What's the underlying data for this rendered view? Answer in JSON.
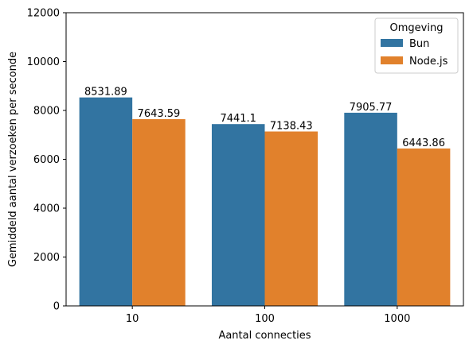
{
  "chart_data": {
    "type": "bar",
    "categories": [
      "10",
      "100",
      "1000"
    ],
    "series": [
      {
        "name": "Bun",
        "color": "#3274a1",
        "values": [
          8531.89,
          7441.1,
          7905.77
        ],
        "labels": [
          "8531.89",
          "7441.1",
          "7905.77"
        ]
      },
      {
        "name": "Node.js",
        "color": "#e1812c",
        "values": [
          7643.59,
          7138.43,
          6443.86
        ],
        "labels": [
          "7643.59",
          "7138.43",
          "6443.86"
        ]
      }
    ],
    "title": "",
    "xlabel": "Aantal connecties",
    "ylabel": "Gemiddeld aantal verzoeken per seconde",
    "ylim": [
      0,
      12000
    ],
    "yticks": [
      0,
      2000,
      4000,
      6000,
      8000,
      10000,
      12000
    ],
    "grid": false,
    "legend": {
      "title": "Omgeving",
      "placement": "top-right"
    }
  }
}
